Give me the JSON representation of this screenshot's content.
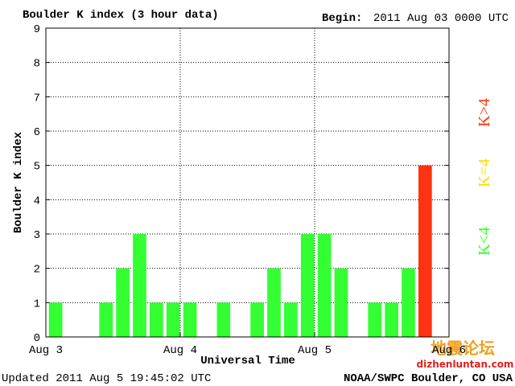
{
  "chart_data": {
    "type": "bar",
    "title": "Boulder K index (3 hour data)",
    "begin_label": "Begin:",
    "begin": "2011 Aug 03 0000 UTC",
    "y_label": "Boulder K index",
    "x_label": "Universal Time",
    "updated": "Updated 2011 Aug  5 19:45:02 UTC",
    "source": "NOAA/SWPC Boulder, CO USA",
    "watermark": [
      "地震论坛",
      "dizhenluntan.com"
    ],
    "x": [
      0,
      0.125,
      0.25,
      0.375,
      0.5,
      0.625,
      0.75,
      0.875,
      1,
      1.125,
      1.25,
      1.375,
      1.5,
      1.625,
      1.75,
      1.875,
      2,
      2.125,
      2.25,
      2.375,
      2.5,
      2.625,
      2.75,
      2.875
    ],
    "values": [
      1,
      0,
      0,
      1,
      2,
      3,
      1,
      1,
      1,
      0,
      1,
      0,
      1,
      2,
      1,
      3,
      3,
      2,
      0,
      1,
      1,
      2,
      5,
      null
    ],
    "bar_colors": [
      "#33ff33",
      "#33ff33",
      "#33ff33",
      "#33ff33",
      "#33ff33",
      "#33ff33",
      "#33ff33",
      "#33ff33",
      "#33ff33",
      "#33ff33",
      "#33ff33",
      "#33ff33",
      "#33ff33",
      "#33ff33",
      "#33ff33",
      "#33ff33",
      "#33ff33",
      "#33ff33",
      "#33ff33",
      "#33ff33",
      "#33ff33",
      "#33ff33",
      "#ff3311",
      "#33ff33"
    ],
    "legend": [
      {
        "label": "K<4",
        "color": "#33ff33"
      },
      {
        "label": "K=4",
        "color": "#ffdd00"
      },
      {
        "label": "K>4",
        "color": "#ff3311"
      }
    ],
    "xlim": [
      0,
      3
    ],
    "xticks": [
      {
        "value": 0,
        "label": "Aug 3"
      },
      {
        "value": 1,
        "label": "Aug 4"
      },
      {
        "value": 2,
        "label": "Aug 5"
      },
      {
        "value": 3,
        "label": "Aug 6"
      }
    ],
    "ylim": [
      0,
      9
    ],
    "yticks": [
      0,
      1,
      2,
      3,
      4,
      5,
      6,
      7,
      8,
      9
    ],
    "grid": true
  }
}
